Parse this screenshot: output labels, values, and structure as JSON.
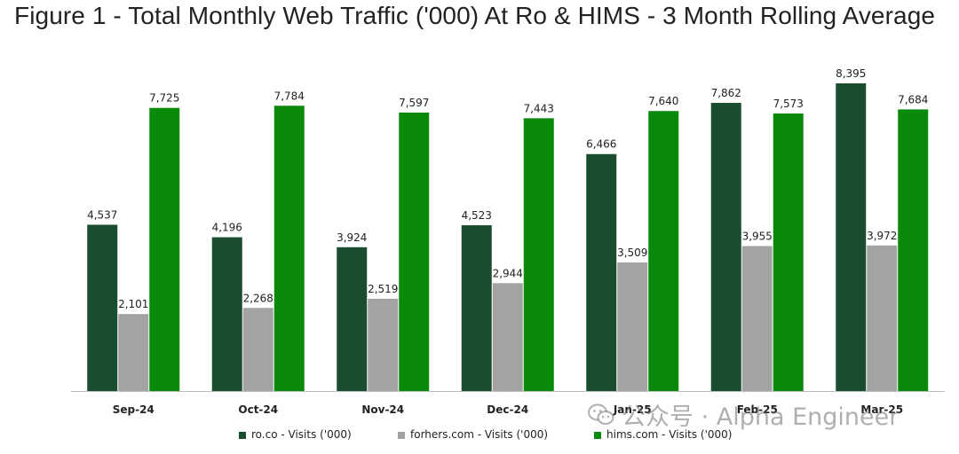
{
  "title": "Figure 1 - Total Monthly Web Traffic ('000) At Ro & HIMS - 3 Month Rolling Average",
  "watermark": {
    "text": "公众号 · Alpha Engineer",
    "icon": "wechat-icon"
  },
  "chart_data": {
    "type": "bar",
    "title": "Figure 1 - Total Monthly Web Traffic ('000) At Ro & HIMS - 3 Month Rolling Average",
    "xlabel": "",
    "ylabel": "",
    "ylim": [
      0,
      8700
    ],
    "grid": false,
    "legend_position": "bottom-center",
    "categories": [
      "Sep-24",
      "Oct-24",
      "Nov-24",
      "Dec-24",
      "Jan-25",
      "Feb-25",
      "Mar-25"
    ],
    "series": [
      {
        "name": "ro.co - Visits ('000)",
        "color": "#1a4d2e",
        "values": [
          4537,
          4196,
          3924,
          4523,
          6466,
          7862,
          8395
        ],
        "labels": [
          "4,537",
          "4,196",
          "3,924",
          "4,523",
          "6,466",
          "7,862",
          "8,395"
        ]
      },
      {
        "name": "forhers.com - Visits ('000)",
        "color": "#a3a3a3",
        "values": [
          2101,
          2268,
          2519,
          2944,
          3509,
          3955,
          3972
        ],
        "labels": [
          "2,101",
          "2,268",
          "2,519",
          "2,944",
          "3,509",
          "3,955",
          "3,972"
        ]
      },
      {
        "name": "hims.com - Visits ('000)",
        "color": "#0a8a0a",
        "values": [
          7725,
          7784,
          7597,
          7443,
          7640,
          7573,
          7684
        ],
        "labels": [
          "7,725",
          "7,784",
          "7,597",
          "7,443",
          "7,640",
          "7,573",
          "7,684"
        ]
      }
    ]
  }
}
